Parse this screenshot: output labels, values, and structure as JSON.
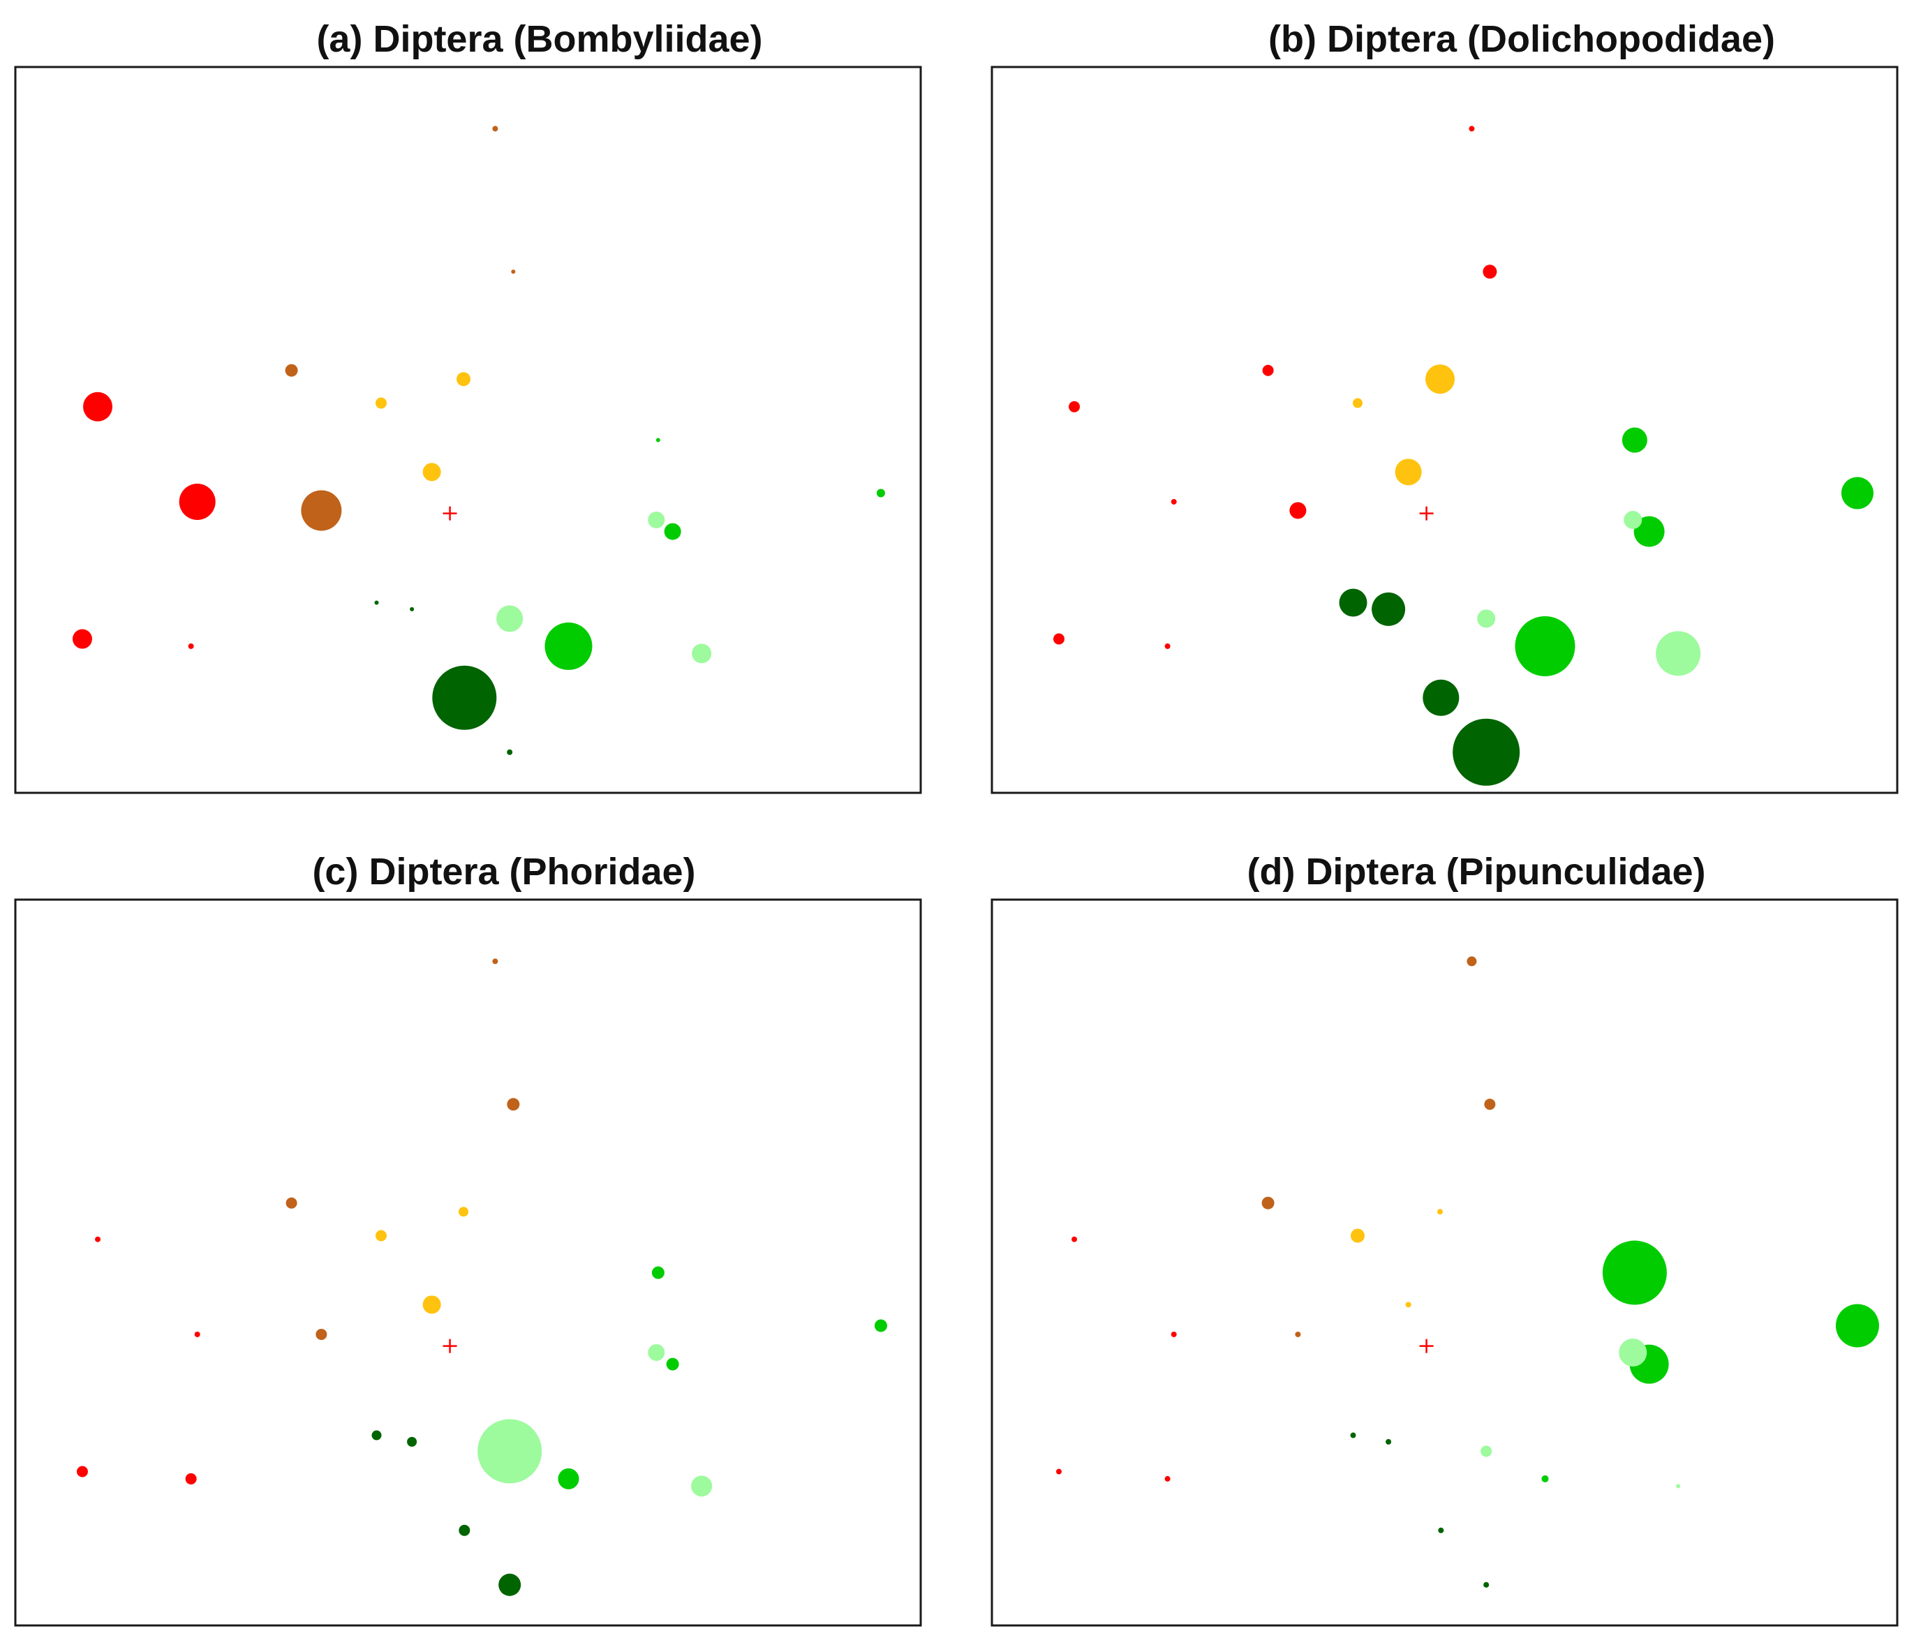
{
  "colors": {
    "red": "#ff0000",
    "brown": "#c0621a",
    "gold": "#ffc20e",
    "green": "#00cc00",
    "lightgreen": "#9dfa9d",
    "darkgreen": "#006400",
    "frame": "#1a1a1a",
    "centroid": "#ff0000"
  },
  "chart_data": [
    {
      "type": "scatter",
      "title": "(a) Diptera (Bombyliidae)",
      "xlim": [
        0,
        100
      ],
      "ylim": [
        0,
        100
      ],
      "centroid": [
        48.0,
        38.5
      ],
      "points": [
        {
          "x": 53.0,
          "y": 91.5,
          "size": 4,
          "color": "brown"
        },
        {
          "x": 55.0,
          "y": 71.8,
          "size": 3,
          "color": "brown"
        },
        {
          "x": 30.5,
          "y": 58.2,
          "size": 9,
          "color": "brown"
        },
        {
          "x": 33.8,
          "y": 38.9,
          "size": 29,
          "color": "brown"
        },
        {
          "x": 40.4,
          "y": 53.7,
          "size": 8,
          "color": "gold"
        },
        {
          "x": 49.5,
          "y": 57.0,
          "size": 10,
          "color": "gold"
        },
        {
          "x": 46.0,
          "y": 44.2,
          "size": 13,
          "color": "gold"
        },
        {
          "x": 9.1,
          "y": 53.2,
          "size": 21,
          "color": "red"
        },
        {
          "x": 20.1,
          "y": 40.1,
          "size": 26,
          "color": "red"
        },
        {
          "x": 7.4,
          "y": 21.2,
          "size": 14,
          "color": "red"
        },
        {
          "x": 19.4,
          "y": 20.2,
          "size": 4,
          "color": "red"
        },
        {
          "x": 71.0,
          "y": 48.6,
          "size": 3,
          "color": "green"
        },
        {
          "x": 95.6,
          "y": 41.3,
          "size": 6,
          "color": "green"
        },
        {
          "x": 72.6,
          "y": 36.0,
          "size": 12,
          "color": "green"
        },
        {
          "x": 61.1,
          "y": 20.2,
          "size": 34,
          "color": "green"
        },
        {
          "x": 70.8,
          "y": 37.6,
          "size": 12,
          "color": "lightgreen"
        },
        {
          "x": 54.6,
          "y": 24.0,
          "size": 19,
          "color": "lightgreen"
        },
        {
          "x": 75.8,
          "y": 19.2,
          "size": 14,
          "color": "lightgreen"
        },
        {
          "x": 39.9,
          "y": 26.2,
          "size": 3,
          "color": "darkgreen"
        },
        {
          "x": 43.8,
          "y": 25.3,
          "size": 3,
          "color": "darkgreen"
        },
        {
          "x": 49.6,
          "y": 13.1,
          "size": 46,
          "color": "darkgreen"
        },
        {
          "x": 54.6,
          "y": 5.6,
          "size": 4,
          "color": "darkgreen"
        }
      ]
    },
    {
      "type": "scatter",
      "title": "(b) Diptera (Dolichopodidae)",
      "xlim": [
        0,
        100
      ],
      "ylim": [
        0,
        100
      ],
      "centroid": [
        48.0,
        38.5
      ],
      "points": [
        {
          "x": 53.0,
          "y": 91.5,
          "size": 4,
          "color": "red"
        },
        {
          "x": 55.0,
          "y": 71.8,
          "size": 10,
          "color": "red"
        },
        {
          "x": 30.5,
          "y": 58.2,
          "size": 8,
          "color": "red"
        },
        {
          "x": 33.8,
          "y": 38.9,
          "size": 12,
          "color": "red"
        },
        {
          "x": 40.4,
          "y": 53.7,
          "size": 7,
          "color": "gold"
        },
        {
          "x": 49.5,
          "y": 57.0,
          "size": 21,
          "color": "gold"
        },
        {
          "x": 46.0,
          "y": 44.2,
          "size": 19,
          "color": "gold"
        },
        {
          "x": 9.1,
          "y": 53.2,
          "size": 8,
          "color": "red"
        },
        {
          "x": 20.1,
          "y": 40.1,
          "size": 4,
          "color": "red"
        },
        {
          "x": 7.4,
          "y": 21.2,
          "size": 8,
          "color": "red"
        },
        {
          "x": 19.4,
          "y": 20.2,
          "size": 4,
          "color": "red"
        },
        {
          "x": 71.0,
          "y": 48.6,
          "size": 18,
          "color": "green"
        },
        {
          "x": 95.6,
          "y": 41.3,
          "size": 23,
          "color": "green"
        },
        {
          "x": 72.6,
          "y": 36.0,
          "size": 22,
          "color": "green"
        },
        {
          "x": 61.1,
          "y": 20.2,
          "size": 43,
          "color": "green"
        },
        {
          "x": 70.8,
          "y": 37.6,
          "size": 13,
          "color": "lightgreen"
        },
        {
          "x": 54.6,
          "y": 24.0,
          "size": 13,
          "color": "lightgreen"
        },
        {
          "x": 75.8,
          "y": 19.2,
          "size": 32,
          "color": "lightgreen"
        },
        {
          "x": 39.9,
          "y": 26.2,
          "size": 20,
          "color": "darkgreen"
        },
        {
          "x": 43.8,
          "y": 25.3,
          "size": 24,
          "color": "darkgreen"
        },
        {
          "x": 49.6,
          "y": 13.1,
          "size": 26,
          "color": "darkgreen"
        },
        {
          "x": 54.6,
          "y": 5.6,
          "size": 48,
          "color": "darkgreen"
        }
      ]
    },
    {
      "type": "scatter",
      "title": "(c) Diptera (Phoridae)",
      "xlim": [
        0,
        100
      ],
      "ylim": [
        0,
        100
      ],
      "centroid": [
        48.0,
        38.5
      ],
      "points": [
        {
          "x": 53.0,
          "y": 91.5,
          "size": 4,
          "color": "brown"
        },
        {
          "x": 55.0,
          "y": 71.8,
          "size": 9,
          "color": "brown"
        },
        {
          "x": 30.5,
          "y": 58.2,
          "size": 8,
          "color": "brown"
        },
        {
          "x": 33.8,
          "y": 40.1,
          "size": 8,
          "color": "brown"
        },
        {
          "x": 40.4,
          "y": 53.7,
          "size": 8,
          "color": "gold"
        },
        {
          "x": 49.5,
          "y": 57.0,
          "size": 7,
          "color": "gold"
        },
        {
          "x": 46.0,
          "y": 44.2,
          "size": 13,
          "color": "gold"
        },
        {
          "x": 9.1,
          "y": 53.2,
          "size": 4,
          "color": "red"
        },
        {
          "x": 20.1,
          "y": 40.1,
          "size": 4,
          "color": "red"
        },
        {
          "x": 7.4,
          "y": 21.2,
          "size": 8,
          "color": "red"
        },
        {
          "x": 19.4,
          "y": 20.2,
          "size": 8,
          "color": "red"
        },
        {
          "x": 71.0,
          "y": 48.6,
          "size": 9,
          "color": "green"
        },
        {
          "x": 95.6,
          "y": 41.3,
          "size": 9,
          "color": "green"
        },
        {
          "x": 72.6,
          "y": 36.0,
          "size": 9,
          "color": "green"
        },
        {
          "x": 61.1,
          "y": 20.2,
          "size": 15,
          "color": "green"
        },
        {
          "x": 70.8,
          "y": 37.6,
          "size": 12,
          "color": "lightgreen"
        },
        {
          "x": 54.6,
          "y": 24.0,
          "size": 46,
          "color": "lightgreen"
        },
        {
          "x": 75.8,
          "y": 19.2,
          "size": 15,
          "color": "lightgreen"
        },
        {
          "x": 39.9,
          "y": 26.2,
          "size": 7,
          "color": "darkgreen"
        },
        {
          "x": 43.8,
          "y": 25.3,
          "size": 7,
          "color": "darkgreen"
        },
        {
          "x": 49.6,
          "y": 13.1,
          "size": 8,
          "color": "darkgreen"
        },
        {
          "x": 54.6,
          "y": 5.6,
          "size": 16,
          "color": "darkgreen"
        }
      ]
    },
    {
      "type": "scatter",
      "title": "(d) Diptera (Pipunculidae)",
      "xlim": [
        0,
        100
      ],
      "ylim": [
        0,
        100
      ],
      "centroid": [
        48.0,
        38.5
      ],
      "points": [
        {
          "x": 53.0,
          "y": 91.5,
          "size": 7,
          "color": "brown"
        },
        {
          "x": 55.0,
          "y": 71.8,
          "size": 8,
          "color": "brown"
        },
        {
          "x": 30.5,
          "y": 58.2,
          "size": 9,
          "color": "brown"
        },
        {
          "x": 33.8,
          "y": 40.1,
          "size": 4,
          "color": "brown"
        },
        {
          "x": 40.4,
          "y": 53.7,
          "size": 10,
          "color": "gold"
        },
        {
          "x": 49.5,
          "y": 57.0,
          "size": 4,
          "color": "gold"
        },
        {
          "x": 46.0,
          "y": 44.2,
          "size": 4,
          "color": "gold"
        },
        {
          "x": 9.1,
          "y": 53.2,
          "size": 4,
          "color": "red"
        },
        {
          "x": 20.1,
          "y": 40.1,
          "size": 4,
          "color": "red"
        },
        {
          "x": 7.4,
          "y": 21.2,
          "size": 4,
          "color": "red"
        },
        {
          "x": 19.4,
          "y": 20.2,
          "size": 4,
          "color": "red"
        },
        {
          "x": 71.0,
          "y": 48.6,
          "size": 46,
          "color": "green"
        },
        {
          "x": 95.6,
          "y": 41.3,
          "size": 31,
          "color": "green"
        },
        {
          "x": 72.6,
          "y": 36.0,
          "size": 28,
          "color": "green"
        },
        {
          "x": 61.1,
          "y": 20.2,
          "size": 5,
          "color": "green"
        },
        {
          "x": 70.8,
          "y": 37.6,
          "size": 20,
          "color": "lightgreen"
        },
        {
          "x": 54.6,
          "y": 24.0,
          "size": 8,
          "color": "lightgreen"
        },
        {
          "x": 75.8,
          "y": 19.2,
          "size": 3,
          "color": "lightgreen"
        },
        {
          "x": 39.9,
          "y": 26.2,
          "size": 4,
          "color": "darkgreen"
        },
        {
          "x": 43.8,
          "y": 25.3,
          "size": 4,
          "color": "darkgreen"
        },
        {
          "x": 49.6,
          "y": 13.1,
          "size": 4,
          "color": "darkgreen"
        },
        {
          "x": 54.6,
          "y": 5.6,
          "size": 4,
          "color": "darkgreen"
        }
      ]
    }
  ]
}
